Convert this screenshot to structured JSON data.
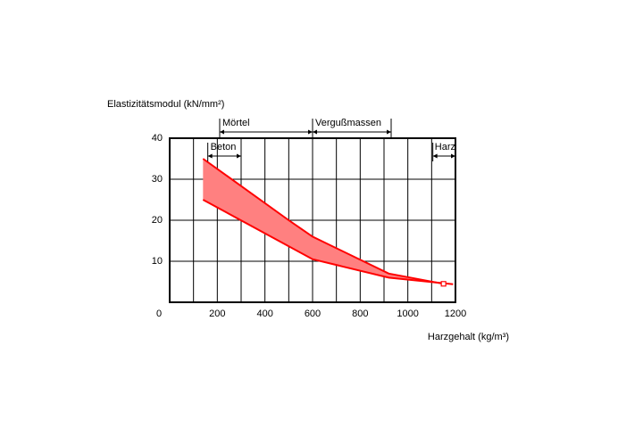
{
  "chart_data": {
    "type": "range-area",
    "y_label": "Elastizitätsmodul (kN/mm²)",
    "x_label": "Harzgehalt (kg/m³)",
    "xlim": [
      0,
      1200
    ],
    "ylim": [
      0,
      40
    ],
    "xticks": [
      0,
      200,
      400,
      600,
      800,
      1000,
      1200
    ],
    "x_minor_ticks": [
      100,
      300,
      500,
      700,
      900,
      1100
    ],
    "yticks": [
      10,
      20,
      30,
      40
    ],
    "grid": true,
    "color": "#ff0000",
    "fill_color": "#ff8080",
    "series": [
      {
        "name": "upper",
        "x": [
          140,
          500,
          600,
          920,
          1150
        ],
        "values": [
          35,
          20,
          16,
          7,
          4.5
        ]
      },
      {
        "name": "lower",
        "x": [
          140,
          600,
          920,
          1190
        ],
        "values": [
          25,
          10.5,
          6,
          4.4
        ]
      }
    ],
    "marker": {
      "x": 1150,
      "y": 4.5
    },
    "ranges": [
      {
        "label": "Beton",
        "from": 160,
        "to": 300
      },
      {
        "label": "Mörtel",
        "from": 210,
        "to": 600
      },
      {
        "label": "Vergußmassen",
        "from": 600,
        "to": 930
      },
      {
        "label": "Harz",
        "from": 1105,
        "to": 1200
      }
    ]
  }
}
